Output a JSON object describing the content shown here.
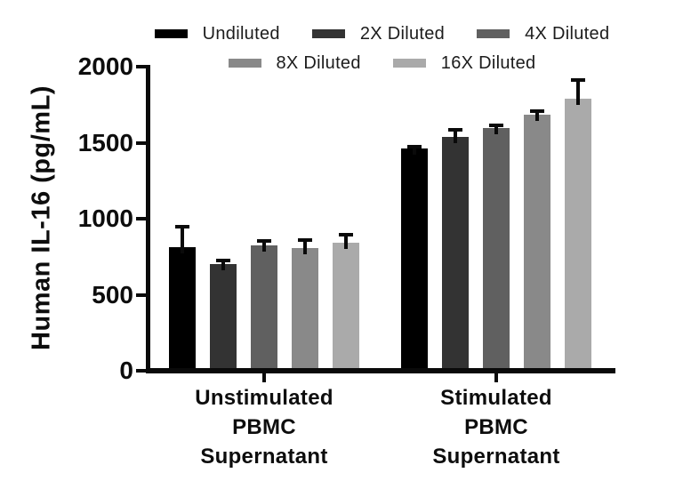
{
  "chart_data": {
    "type": "bar",
    "ylabel": "Human IL-16 (pg/mL)",
    "xlabel": "",
    "ylim": [
      0,
      2000
    ],
    "yticks": [
      0,
      500,
      1000,
      1500,
      2000
    ],
    "grid": false,
    "legend_position": "top",
    "error_bars": "sd, upper only",
    "categories": [
      "Unstimulated PBMC Supernatant",
      "Stimulated PBMC Supernatant"
    ],
    "category_lines": [
      [
        "Unstimulated",
        "PBMC",
        "Supernatant"
      ],
      [
        "Stimulated",
        "PBMC",
        "Supernatant"
      ]
    ],
    "series": [
      {
        "name": "Undiluted",
        "color": "#000000",
        "values": [
          810,
          1460
        ],
        "errors": [
          140,
          16
        ]
      },
      {
        "name": "2X Diluted",
        "color": "#333333",
        "values": [
          700,
          1540
        ],
        "errors": [
          26,
          45
        ]
      },
      {
        "name": "4X Diluted",
        "color": "#606060",
        "values": [
          822,
          1595
        ],
        "errors": [
          32,
          17
        ]
      },
      {
        "name": "8X Diluted",
        "color": "#898989",
        "values": [
          805,
          1685
        ],
        "errors": [
          56,
          22
        ]
      },
      {
        "name": "16X Diluted",
        "color": "#aaaaaa",
        "values": [
          840,
          1790
        ],
        "errors": [
          55,
          125
        ]
      }
    ],
    "legend_rows": [
      [
        0,
        1,
        2
      ],
      [
        3,
        4
      ]
    ]
  }
}
